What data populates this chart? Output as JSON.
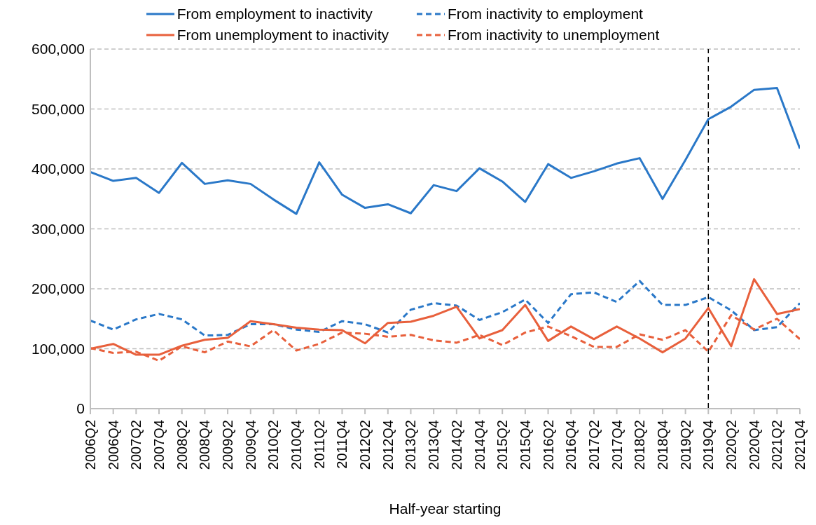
{
  "chart_data": {
    "type": "line",
    "xlabel": "Half-year starting",
    "categories": [
      "2006Q2",
      "2006Q4",
      "2007Q2",
      "2007Q4",
      "2008Q2",
      "2008Q4",
      "2009Q2",
      "2009Q4",
      "2010Q2",
      "2010Q4",
      "2011Q2",
      "2011Q4",
      "2012Q2",
      "2012Q4",
      "2013Q2",
      "2013Q4",
      "2014Q2",
      "2014Q4",
      "2015Q2",
      "2015Q4",
      "2016Q2",
      "2016Q4",
      "2017Q2",
      "2017Q4",
      "2018Q2",
      "2018Q4",
      "2019Q2",
      "2019Q4",
      "2020Q2",
      "2020Q4",
      "2021Q2",
      "2021Q4"
    ],
    "series": [
      {
        "name": "From employment to inactivity",
        "color": "#2a78c8",
        "line_style": "solid",
        "values": [
          395000,
          380000,
          385000,
          360000,
          410000,
          375000,
          381000,
          375000,
          349000,
          325000,
          411000,
          357000,
          335000,
          341000,
          326000,
          373000,
          363000,
          401000,
          379000,
          345000,
          408000,
          385000,
          396000,
          409000,
          418000,
          350000,
          415000,
          483000,
          504000,
          532000,
          535000,
          434000
        ]
      },
      {
        "name": "From inactivity to employment",
        "color": "#2a78c8",
        "line_style": "dashed",
        "values": [
          147000,
          132000,
          149000,
          158000,
          149000,
          122000,
          123000,
          141000,
          141000,
          132000,
          128000,
          146000,
          141000,
          127000,
          165000,
          176000,
          172000,
          148000,
          161000,
          182000,
          143000,
          191000,
          194000,
          178000,
          213000,
          173000,
          173000,
          186000,
          164000,
          131000,
          136000,
          176000
        ]
      },
      {
        "name": "From unemployment to inactivity",
        "color": "#e8603c",
        "line_style": "solid",
        "values": [
          100000,
          108000,
          90000,
          90000,
          105000,
          115000,
          118000,
          146000,
          141000,
          135000,
          132000,
          131000,
          109000,
          143000,
          145000,
          155000,
          170000,
          117000,
          131000,
          173000,
          113000,
          137000,
          116000,
          137000,
          117000,
          94000,
          117000,
          168000,
          104000,
          216000,
          158000,
          166000
        ]
      },
      {
        "name": "From inactivity to unemployment",
        "color": "#e8603c",
        "line_style": "dashed",
        "values": [
          101000,
          93000,
          95000,
          80000,
          104000,
          94000,
          112000,
          104000,
          131000,
          97000,
          108000,
          127000,
          125000,
          120000,
          123000,
          114000,
          110000,
          123000,
          106000,
          127000,
          137000,
          121000,
          103000,
          103000,
          124000,
          115000,
          131000,
          95000,
          156000,
          132000,
          150000,
          116000
        ]
      }
    ],
    "ylim": [
      0,
      600000
    ],
    "yticks": [
      0,
      {
        "value": 100000,
        "label": "100,000"
      },
      {
        "value": 200000,
        "label": "200,000"
      },
      {
        "value": 300000,
        "label": "300,000"
      },
      {
        "value": 400000,
        "label": "400,000"
      },
      {
        "value": 500000,
        "label": "500,000"
      },
      {
        "value": 600000,
        "label": "600,000"
      }
    ],
    "grid": "y",
    "legend": "top",
    "marker": "none",
    "ref_lines": [
      {
        "axis": "x",
        "value": "2019Q4",
        "color": "#000000",
        "line_style": "dashed"
      }
    ]
  }
}
